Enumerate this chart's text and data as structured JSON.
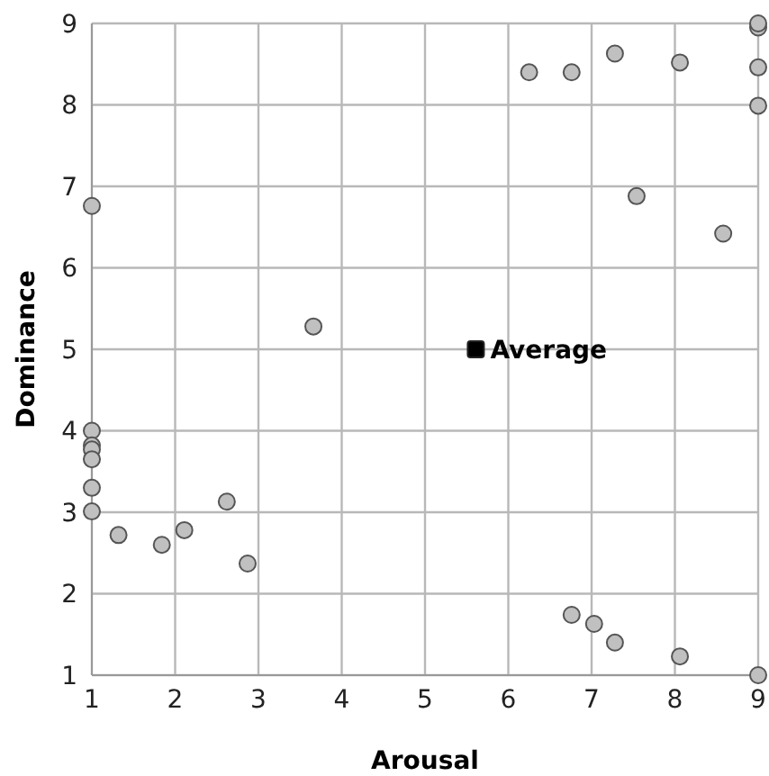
{
  "chart_data": {
    "type": "scatter",
    "xlabel": "Arousal",
    "ylabel": "Dominance",
    "xlim": [
      1,
      9
    ],
    "ylim": [
      1,
      9
    ],
    "xticks": [
      1,
      2,
      3,
      4,
      5,
      6,
      7,
      8,
      9
    ],
    "yticks": [
      1,
      2,
      3,
      4,
      5,
      6,
      7,
      8,
      9
    ],
    "grid": true,
    "legend": false,
    "series": [
      {
        "color": "#c0c0c0",
        "marker": "circle",
        "x": [
          1,
          3.66,
          6.25,
          6.76,
          7.28,
          8.06,
          9,
          9,
          9,
          9,
          7.54,
          8.58,
          1,
          1,
          1,
          1,
          1,
          1,
          1.32,
          1.84,
          2.11,
          2.62,
          2.87,
          6.76,
          7.03,
          7.28,
          8.06,
          9
        ],
        "values": [
          6.76,
          5.28,
          8.4,
          8.4,
          8.63,
          8.52,
          8.95,
          9,
          8.46,
          7.99,
          6.88,
          6.42,
          4.0,
          3.82,
          3.77,
          3.65,
          3.3,
          3.01,
          2.72,
          2.6,
          2.78,
          3.13,
          2.37,
          1.74,
          1.63,
          1.4,
          1.23,
          1
        ]
      },
      {
        "name": "Average",
        "color": "#000000",
        "marker": "square",
        "x": [
          5.61
        ],
        "values": [
          5.0
        ]
      }
    ]
  }
}
